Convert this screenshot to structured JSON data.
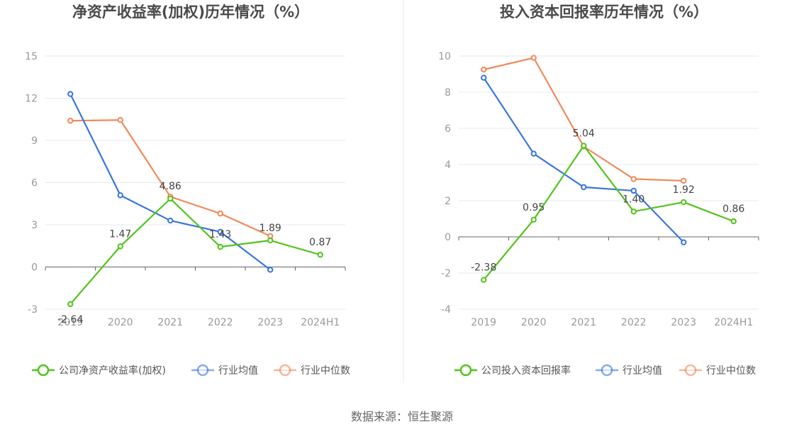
{
  "footer": {
    "source": "数据来源：恒生聚源"
  },
  "colors": {
    "company": "#52c41a",
    "average": "#3a75e0",
    "median": "#f0895a",
    "grid": "#e6e9f0",
    "axis": "#666666"
  },
  "chart_data": [
    {
      "type": "line",
      "title": "净资产收益率(加权)历年情况（%）",
      "categories": [
        "2019",
        "2020",
        "2021",
        "2022",
        "2023",
        "2024H1"
      ],
      "yticks": [
        "-3",
        "0",
        "3",
        "6",
        "9",
        "12",
        "15"
      ],
      "ylim": [
        -3,
        15
      ],
      "series": [
        {
          "name": "公司净资产收益率(加权)",
          "key": "company",
          "values": [
            -2.64,
            1.47,
            4.86,
            1.43,
            1.89,
            0.87
          ],
          "labels": [
            "-2.64",
            "1.47",
            "4.86",
            "1.43",
            "1.89",
            "0.87"
          ]
        },
        {
          "name": "行业均值",
          "key": "average",
          "values": [
            12.3,
            5.1,
            3.3,
            2.5,
            -0.2,
            null
          ]
        },
        {
          "name": "行业中位数",
          "key": "median",
          "values": [
            10.4,
            10.45,
            5.0,
            3.8,
            2.2,
            null
          ]
        }
      ],
      "grid": true,
      "legend": "bottom"
    },
    {
      "type": "line",
      "title": "投入资本回报率历年情况（%）",
      "categories": [
        "2019",
        "2020",
        "2021",
        "2022",
        "2023",
        "2024H1"
      ],
      "yticks": [
        "-4",
        "-2",
        "0",
        "2",
        "4",
        "6",
        "8",
        "10"
      ],
      "ylim": [
        -4,
        10
      ],
      "series": [
        {
          "name": "公司投入资本回报率",
          "key": "company",
          "values": [
            -2.38,
            0.95,
            5.04,
            1.4,
            1.92,
            0.86
          ],
          "labels": [
            "-2.38",
            "0.95",
            "5.04",
            "1.40",
            "1.92",
            "0.86"
          ]
        },
        {
          "name": "行业均值",
          "key": "average",
          "values": [
            8.8,
            4.6,
            2.75,
            2.55,
            -0.3,
            null
          ]
        },
        {
          "name": "行业中位数",
          "key": "median",
          "values": [
            9.25,
            9.9,
            5.0,
            3.2,
            3.1,
            null
          ]
        }
      ],
      "grid": true,
      "legend": "bottom"
    }
  ]
}
